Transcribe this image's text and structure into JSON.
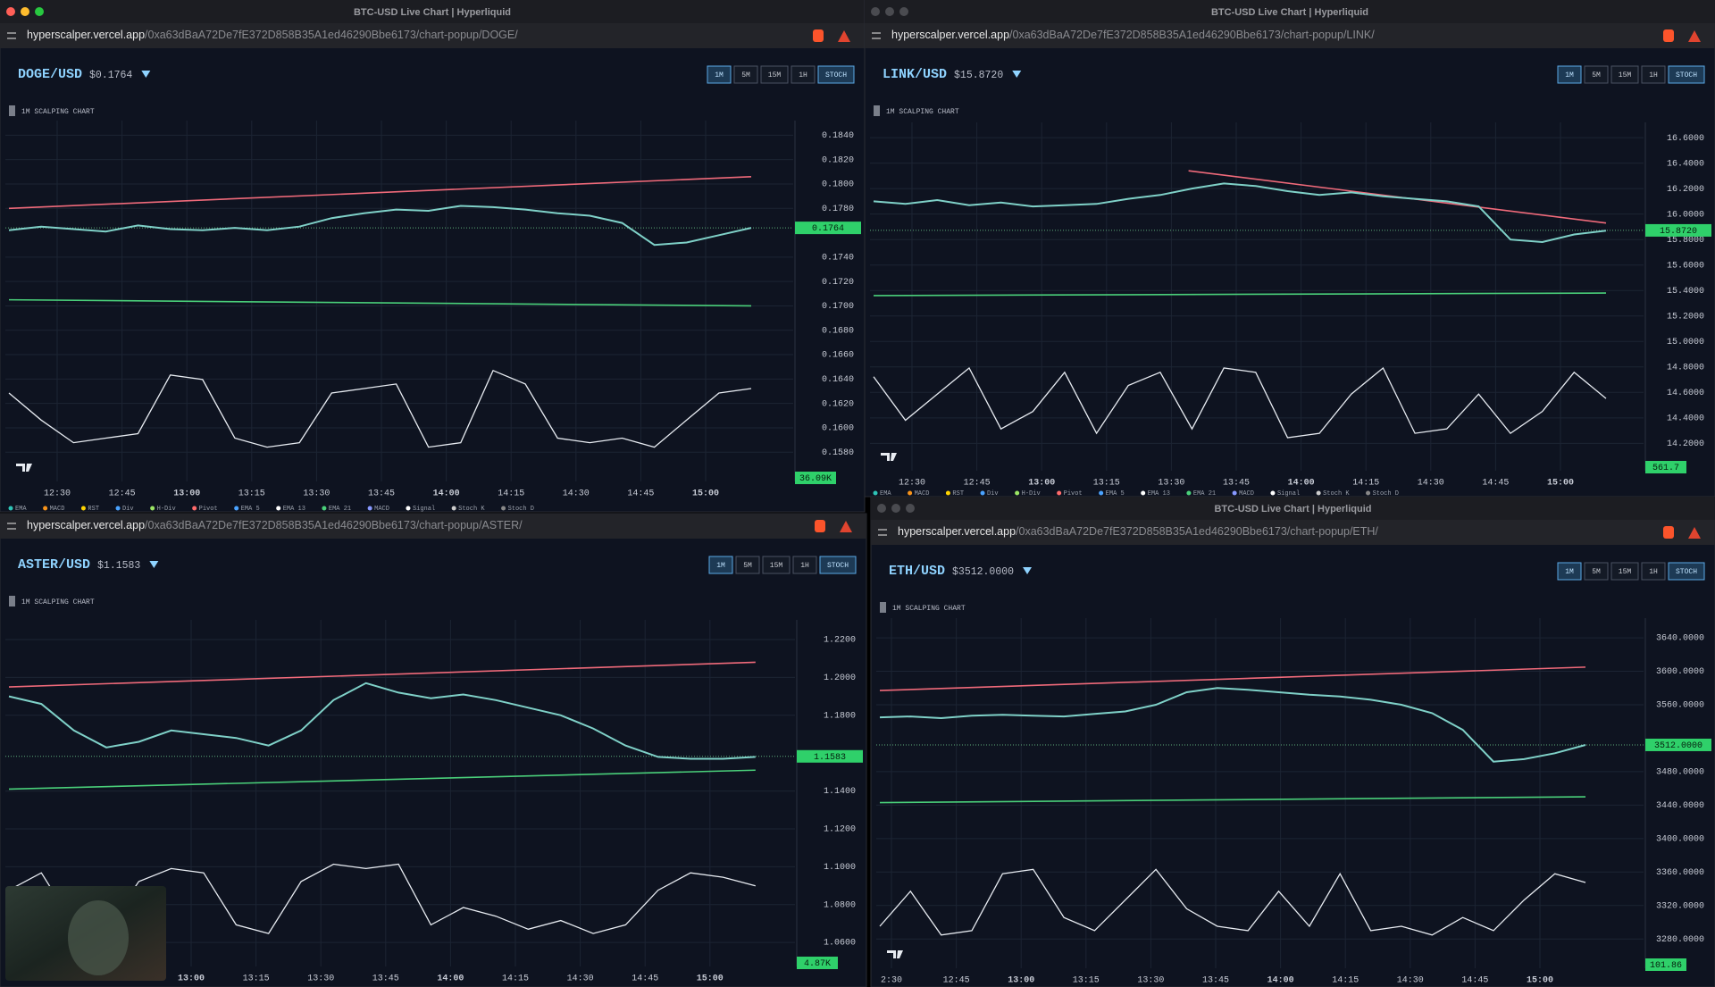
{
  "windows": [
    {
      "title": "BTC-USD Live Chart | Hyperliquid",
      "url_host": "hyperscalper.vercel.app",
      "url_path": "/0xa63dBaA72De7fE372D858B35A1ed46290Bbe6173/chart-popup/DOGE/",
      "symbol": "DOGE/USD",
      "price": "$0.1764",
      "intervals": [
        "1M",
        "5M",
        "15M",
        "1H",
        "STOCH"
      ],
      "chart_label": "1M SCALPING CHART",
      "ylim": [
        0.1556,
        0.1852
      ],
      "yticks": [
        {
          "value": 0.184,
          "label": "0.1840"
        },
        {
          "value": 0.182,
          "label": "0.1820"
        },
        {
          "value": 0.18,
          "label": "0.1800"
        },
        {
          "value": 0.178,
          "label": "0.1780"
        },
        {
          "value": 0.174,
          "label": "0.1740"
        },
        {
          "value": 0.172,
          "label": "0.1720"
        },
        {
          "value": 0.17,
          "label": "0.1700"
        },
        {
          "value": 0.168,
          "label": "0.1680"
        },
        {
          "value": 0.166,
          "label": "0.1660"
        },
        {
          "value": 0.164,
          "label": "0.1640"
        },
        {
          "value": 0.162,
          "label": "0.1620"
        },
        {
          "value": 0.16,
          "label": "0.1600"
        },
        {
          "value": 0.158,
          "label": "0.1580"
        }
      ],
      "xticks": [
        "12:30",
        "12:45",
        "13:00",
        "13:15",
        "13:30",
        "13:45",
        "14:00",
        "14:15",
        "14:30",
        "14:45",
        "15:00"
      ],
      "price_series": [
        0.1762,
        0.1765,
        0.1763,
        0.1761,
        0.1766,
        0.1763,
        0.1762,
        0.1764,
        0.1762,
        0.1765,
        0.1772,
        0.1776,
        0.1779,
        0.1778,
        0.1782,
        0.1781,
        0.1779,
        0.1776,
        0.1774,
        0.1768,
        0.175,
        0.1752,
        0.1758,
        0.1764
      ],
      "stoch": [
        70,
        40,
        15,
        20,
        25,
        90,
        85,
        20,
        10,
        15,
        70,
        75,
        80,
        10,
        15,
        95,
        80,
        20,
        15,
        20,
        10,
        40,
        70,
        75
      ],
      "resistance": [
        0.178,
        0.1806
      ],
      "support": [
        0.1705,
        0.17
      ],
      "current": {
        "value": 0.1764,
        "label": "0.1764"
      },
      "volume_label": "36.09K",
      "legend": [
        "EMA",
        "MACD",
        "RST",
        "Div",
        "H-Div",
        "Pivot",
        "EMA 5",
        "EMA 13",
        "EMA 21",
        "MACD",
        "Signal",
        "Stoch K",
        "Stoch D"
      ]
    },
    {
      "title": "BTC-USD Live Chart | Hyperliquid",
      "url_host": "hyperscalper.vercel.app",
      "url_path": "/0xa63dBaA72De7fE372D858B35A1ed46290Bbe6173/chart-popup/LINK/",
      "symbol": "LINK/USD",
      "price": "$15.8720",
      "intervals": [
        "1M",
        "5M",
        "15M",
        "1H",
        "STOCH"
      ],
      "chart_label": "1M SCALPING CHART",
      "ylim": [
        13.985,
        16.72
      ],
      "yticks": [
        {
          "value": 16.6,
          "label": "16.6000"
        },
        {
          "value": 16.4,
          "label": "16.4000"
        },
        {
          "value": 16.2,
          "label": "16.2000"
        },
        {
          "value": 16,
          "label": "16.0000"
        },
        {
          "value": 15.8,
          "label": "15.8000"
        },
        {
          "value": 15.6,
          "label": "15.6000"
        },
        {
          "value": 15.4,
          "label": "15.4000"
        },
        {
          "value": 15.2,
          "label": "15.2000"
        },
        {
          "value": 15,
          "label": "15.0000"
        },
        {
          "value": 14.8,
          "label": "14.8000"
        },
        {
          "value": 14.6,
          "label": "14.6000"
        },
        {
          "value": 14.4,
          "label": "14.4000"
        },
        {
          "value": 14.2,
          "label": "14.2000"
        }
      ],
      "xticks": [
        "12:30",
        "12:45",
        "13:00",
        "13:15",
        "13:30",
        "13:45",
        "14:00",
        "14:15",
        "14:30",
        "14:45",
        "15:00"
      ],
      "price_series": [
        16.1,
        16.08,
        16.11,
        16.07,
        16.09,
        16.06,
        16.07,
        16.08,
        16.12,
        16.15,
        16.2,
        16.24,
        16.22,
        16.18,
        16.15,
        16.17,
        16.14,
        16.12,
        16.1,
        16.06,
        15.8,
        15.78,
        15.84,
        15.87
      ],
      "stoch": [
        80,
        30,
        60,
        90,
        20,
        40,
        85,
        15,
        70,
        85,
        20,
        90,
        85,
        10,
        15,
        60,
        90,
        15,
        20,
        60,
        15,
        40,
        85,
        55
      ],
      "resistance": [
        16.34,
        15.93
      ],
      "support": [
        15.36,
        15.38
      ],
      "current": {
        "value": 15.872,
        "label": "15.8720"
      },
      "volume_label": "561.7",
      "legend": [
        "EMA",
        "MACD",
        "RST",
        "Div",
        "H-Div",
        "Pivot",
        "EMA 5",
        "EMA 13",
        "EMA 21",
        "MACD",
        "Signal",
        "Stoch K",
        "Stoch D"
      ]
    },
    {
      "url_host": "hyperscalper.vercel.app",
      "url_path": "/0xa63dBaA72De7fE372D858B35A1ed46290Bbe6173/chart-popup/ASTER/",
      "symbol": "ASTER/USD",
      "price": "$1.1583",
      "intervals": [
        "1M",
        "5M",
        "15M",
        "1H",
        "STOCH"
      ],
      "chart_label": "1M SCALPING CHART",
      "ylim": [
        1.0473,
        1.2304
      ],
      "yticks": [
        {
          "value": 1.22,
          "label": "1.2200"
        },
        {
          "value": 1.2,
          "label": "1.2000"
        },
        {
          "value": 1.18,
          "label": "1.1800"
        },
        {
          "value": 1.14,
          "label": "1.1400"
        },
        {
          "value": 1.12,
          "label": "1.1200"
        },
        {
          "value": 1.1,
          "label": "1.1000"
        },
        {
          "value": 1.08,
          "label": "1.0800"
        },
        {
          "value": 1.06,
          "label": "1.0600"
        }
      ],
      "xticks": [
        "13:00",
        "13:15",
        "13:30",
        "13:45",
        "14:00",
        "14:15",
        "14:30",
        "14:45",
        "15:00"
      ],
      "price_series": [
        1.19,
        1.186,
        1.172,
        1.163,
        1.166,
        1.172,
        1.17,
        1.168,
        1.164,
        1.172,
        1.188,
        1.197,
        1.192,
        1.189,
        1.191,
        1.188,
        1.184,
        1.18,
        1.173,
        1.164,
        1.158,
        1.157,
        1.157,
        1.158
      ],
      "stoch": [
        60,
        80,
        20,
        15,
        70,
        85,
        80,
        20,
        10,
        70,
        90,
        85,
        90,
        20,
        40,
        30,
        15,
        25,
        10,
        20,
        60,
        80,
        75,
        65
      ],
      "resistance": [
        1.195,
        1.208
      ],
      "support": [
        1.141,
        1.151
      ],
      "current": {
        "value": 1.1583,
        "label": "1.1583"
      },
      "volume_label": "4.87K"
    },
    {
      "title": "BTC-USD Live Chart | Hyperliquid",
      "url_host": "hyperscalper.vercel.app",
      "url_path": "/0xa63dBaA72De7fE372D858B35A1ed46290Bbe6173/chart-popup/ETH/",
      "symbol": "ETH/USD",
      "price": "$3512.0000",
      "intervals": [
        "1M",
        "5M",
        "15M",
        "1H",
        "STOCH"
      ],
      "chart_label": "1M SCALPING CHART",
      "ylim": [
        3245,
        3663.6
      ],
      "yticks": [
        {
          "value": 3640,
          "label": "3640.0000"
        },
        {
          "value": 3600,
          "label": "3600.0000"
        },
        {
          "value": 3560,
          "label": "3560.0000"
        },
        {
          "value": 3480,
          "label": "3480.0000"
        },
        {
          "value": 3440,
          "label": "3440.0000"
        },
        {
          "value": 3400,
          "label": "3400.0000"
        },
        {
          "value": 3360,
          "label": "3360.0000"
        },
        {
          "value": 3320,
          "label": "3320.0000"
        },
        {
          "value": 3280,
          "label": "3280.0000"
        }
      ],
      "xticks": [
        "2:30",
        "12:45",
        "13:00",
        "13:15",
        "13:30",
        "13:45",
        "14:00",
        "14:15",
        "14:30",
        "14:45",
        "15:00"
      ],
      "price_series": [
        3545,
        3546,
        3544,
        3547,
        3548,
        3547,
        3546,
        3549,
        3552,
        3560,
        3575,
        3580,
        3578,
        3575,
        3572,
        3570,
        3566,
        3560,
        3550,
        3530,
        3492,
        3495,
        3502,
        3512
      ],
      "stoch": [
        20,
        60,
        10,
        15,
        80,
        85,
        30,
        15,
        50,
        85,
        40,
        20,
        15,
        60,
        20,
        80,
        15,
        20,
        10,
        30,
        15,
        50,
        80,
        70
      ],
      "resistance": [
        3577,
        3605
      ],
      "support": [
        3443,
        3450
      ],
      "current": {
        "value": 3512,
        "label": "3512.0000"
      },
      "volume_label": "101.86"
    }
  ]
}
